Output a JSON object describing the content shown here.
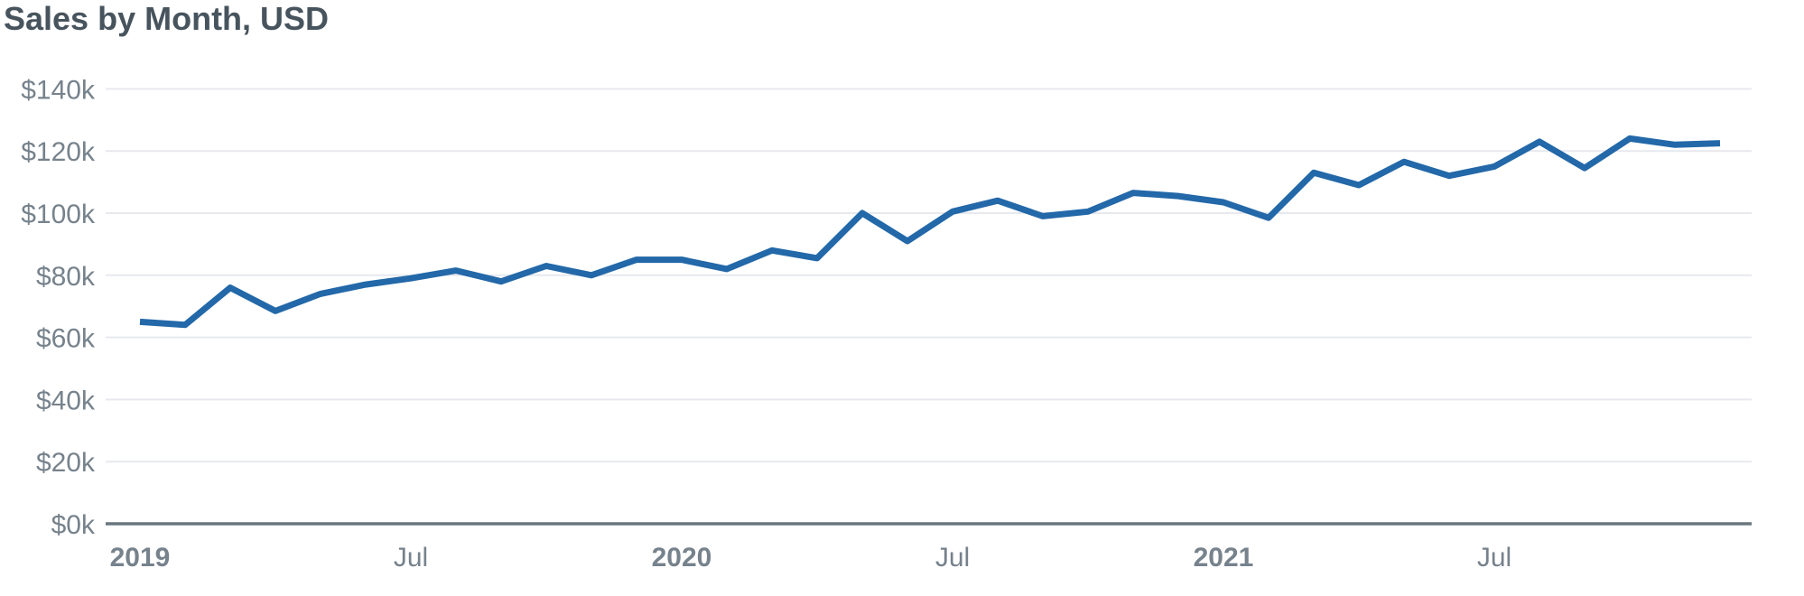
{
  "page": {
    "background": "#ffffff"
  },
  "chart_data": {
    "type": "line",
    "title": "Sales by Month, USD",
    "unit": "USD",
    "x": [
      "2019-01",
      "2019-02",
      "2019-03",
      "2019-04",
      "2019-05",
      "2019-06",
      "2019-07",
      "2019-08",
      "2019-09",
      "2019-10",
      "2019-11",
      "2019-12",
      "2020-01",
      "2020-02",
      "2020-03",
      "2020-04",
      "2020-05",
      "2020-06",
      "2020-07",
      "2020-08",
      "2020-09",
      "2020-10",
      "2020-11",
      "2020-12",
      "2021-01",
      "2021-02",
      "2021-03",
      "2021-04",
      "2021-05",
      "2021-06",
      "2021-07",
      "2021-08",
      "2021-09",
      "2021-10",
      "2021-11",
      "2021-12"
    ],
    "series": [
      {
        "name": "Sales",
        "values": [
          65000,
          64000,
          76000,
          68500,
          74000,
          77000,
          79000,
          81500,
          78000,
          83000,
          80000,
          85000,
          85000,
          82000,
          88000,
          85500,
          100000,
          91000,
          100500,
          104000,
          99000,
          100500,
          106500,
          105500,
          103500,
          98500,
          113000,
          109000,
          116500,
          112000,
          115000,
          123000,
          114500,
          124000,
          122000,
          122500
        ]
      }
    ],
    "ylim": [
      0,
      140000
    ],
    "y_ticks": [
      0,
      20000,
      40000,
      60000,
      80000,
      100000,
      120000,
      140000
    ],
    "y_tick_labels": [
      "$0k",
      "$20k",
      "$40k",
      "$60k",
      "$80k",
      "$100k",
      "$120k",
      "$140k"
    ],
    "x_tick_labels": [
      {
        "label": "2019",
        "month_index": 0,
        "bold": true
      },
      {
        "label": "Jul",
        "month_index": 6,
        "bold": false
      },
      {
        "label": "2020",
        "month_index": 12,
        "bold": true
      },
      {
        "label": "Jul",
        "month_index": 18,
        "bold": false
      },
      {
        "label": "2021",
        "month_index": 24,
        "bold": true
      },
      {
        "label": "Jul",
        "month_index": 30,
        "bold": false
      }
    ],
    "grid": "horizontal",
    "legend": "none",
    "colors": {
      "line": "#2368a8",
      "grid": "#e7e9ee",
      "axis": "#69767f",
      "tick_text": "#76828c",
      "title_text": "#47545e"
    }
  }
}
